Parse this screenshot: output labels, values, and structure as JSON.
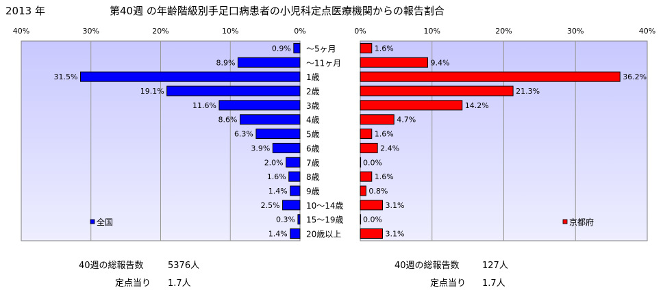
{
  "header": {
    "year": "2013 年",
    "title": "第40週 の年齢階級別手足口病患者の小児科定点医療機関からの報告割合"
  },
  "colors": {
    "plot_bg_top": "#c8c8ff",
    "plot_bg_bottom": "#eeeeff",
    "national_bar": "#0000ff",
    "kyoto_bar": "#ff0000",
    "gridline": "#999999"
  },
  "chart_data": [
    {
      "type": "bar",
      "orientation": "horizontal",
      "direction": "right-to-left",
      "categories": [
        "～5ヶ月",
        "～11ヶ月",
        "1歳",
        "2歳",
        "3歳",
        "4歳",
        "5歳",
        "6歳",
        "7歳",
        "8歳",
        "9歳",
        "10～14歳",
        "15～19歳",
        "20歳以上"
      ],
      "series": [
        {
          "name": "全国",
          "values": [
            0.9,
            8.9,
            31.5,
            19.1,
            11.6,
            8.6,
            6.3,
            3.9,
            2.0,
            1.6,
            1.4,
            2.5,
            0.3,
            1.4
          ],
          "labels": [
            "0.9%",
            "8.9%",
            "31.5%",
            "19.1%",
            "11.6%",
            "8.6%",
            "6.3%",
            "3.9%",
            "2.0%",
            "1.6%",
            "1.4%",
            "2.5%",
            "0.3%",
            "1.4%"
          ]
        }
      ],
      "xlim": [
        0,
        40
      ],
      "ticks": [
        0,
        10,
        20,
        30,
        40
      ],
      "tick_labels": [
        "0%",
        "10%",
        "20%",
        "30%",
        "40%"
      ],
      "grid": true,
      "legend_position": "bottom-left"
    },
    {
      "type": "bar",
      "orientation": "horizontal",
      "direction": "left-to-right",
      "categories": [
        "～5ヶ月",
        "～11ヶ月",
        "1歳",
        "2歳",
        "3歳",
        "4歳",
        "5歳",
        "6歳",
        "7歳",
        "8歳",
        "9歳",
        "10～14歳",
        "15～19歳",
        "20歳以上"
      ],
      "series": [
        {
          "name": "京都府",
          "values": [
            1.6,
            9.4,
            36.2,
            21.3,
            14.2,
            4.7,
            1.6,
            2.4,
            0.0,
            1.6,
            0.8,
            3.1,
            0.0,
            3.1
          ],
          "labels": [
            "1.6%",
            "9.4%",
            "36.2%",
            "21.3%",
            "14.2%",
            "4.7%",
            "1.6%",
            "2.4%",
            "0.0%",
            "1.6%",
            "0.8%",
            "3.1%",
            "0.0%",
            "3.1%"
          ]
        }
      ],
      "xlim": [
        0,
        40
      ],
      "ticks": [
        0,
        10,
        20,
        30,
        40
      ],
      "tick_labels": [
        "0%",
        "10%",
        "20%",
        "30%",
        "40%"
      ],
      "grid": true,
      "legend_position": "bottom-right"
    }
  ],
  "stats": {
    "national": {
      "total_label": "40週の総報告数",
      "total_value": "5376人",
      "per_site_label": "定点当り",
      "per_site_value": "1.7人"
    },
    "kyoto": {
      "total_label": "40週の総報告数",
      "total_value": "127人",
      "per_site_label": "定点当り",
      "per_site_value": "1.7人"
    }
  }
}
